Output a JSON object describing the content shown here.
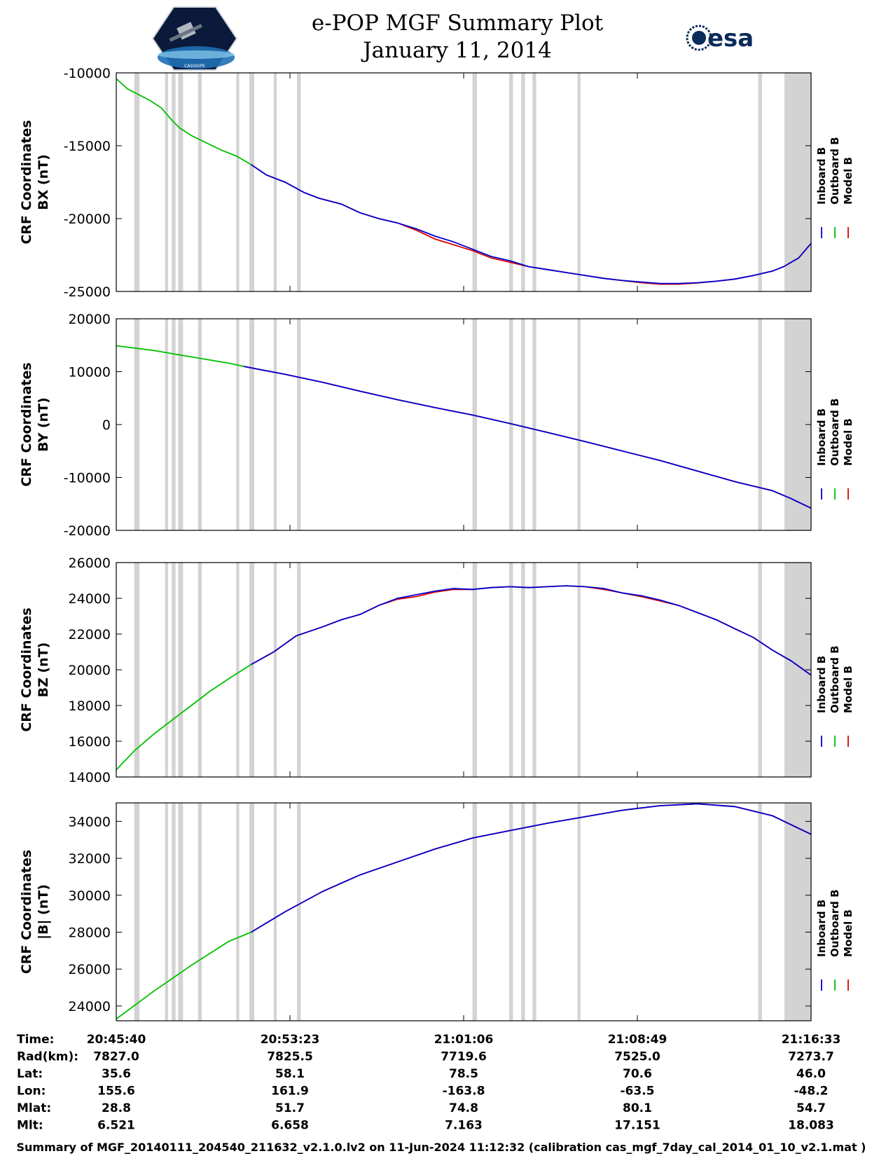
{
  "header": {
    "title_line1": "e-POP MGF Summary Plot",
    "title_line2": "January 11, 2014",
    "logo_left": "CASSIOPE",
    "logo_right": "esa"
  },
  "colors": {
    "inboard": "#0000d0",
    "outboard": "#00c000",
    "model": "#e00000",
    "gap_band": "#d3d3d3"
  },
  "legend": {
    "entries": [
      "Inboard B",
      "Outboard B",
      "Model B"
    ]
  },
  "chart_data": [
    {
      "type": "line",
      "ylabel": [
        "CRF Coordinates",
        "BX (nT)"
      ],
      "ylim": [
        -25000,
        -10000
      ],
      "yticks": [
        -10000,
        -15000,
        -20000,
        -25000
      ],
      "xlim": [
        0,
        1853
      ],
      "xticks": [
        "20:45:40",
        "20:53:23",
        "21:01:06",
        "21:08:49",
        "21:16:33"
      ],
      "gap_bands": [
        [
          48,
          62
        ],
        [
          130,
          138
        ],
        [
          148,
          158
        ],
        [
          165,
          178
        ],
        [
          218,
          228
        ],
        [
          320,
          328
        ],
        [
          355,
          368
        ],
        [
          420,
          428
        ],
        [
          482,
          492
        ],
        [
          950,
          962
        ],
        [
          1048,
          1058
        ],
        [
          1080,
          1090
        ],
        [
          1110,
          1120
        ],
        [
          1230,
          1238
        ],
        [
          1712,
          1722
        ],
        [
          1782,
          1853
        ]
      ],
      "series": [
        {
          "name": "Outboard B",
          "x": [
            0,
            30,
            60,
            90,
            120,
            150,
            170,
            200,
            240,
            280,
            320,
            360
          ],
          "values": [
            -10400,
            -11100,
            -11500,
            -11900,
            -12400,
            -13300,
            -13800,
            -14300,
            -14800,
            -15300,
            -15700,
            -16300
          ]
        },
        {
          "name": "Inboard B",
          "x": [
            360,
            400,
            450,
            500,
            540,
            600,
            650,
            700,
            750,
            800,
            850,
            900,
            950,
            1000,
            1050,
            1100,
            1150,
            1200,
            1250,
            1300,
            1350,
            1400,
            1450,
            1500,
            1550,
            1600,
            1650,
            1700,
            1750,
            1780,
            1820,
            1853
          ],
          "values": [
            -16300,
            -17000,
            -17500,
            -18200,
            -18600,
            -19000,
            -19600,
            -20000,
            -20300,
            -20700,
            -21200,
            -21600,
            -22100,
            -22600,
            -22900,
            -23300,
            -23500,
            -23700,
            -23900,
            -24100,
            -24250,
            -24350,
            -24450,
            -24450,
            -24400,
            -24300,
            -24150,
            -23900,
            -23600,
            -23300,
            -22700,
            -21700
          ]
        },
        {
          "name": "Model B",
          "x": [
            360,
            400,
            450,
            500,
            540,
            600,
            650,
            700,
            750,
            800,
            850,
            900,
            950,
            1000,
            1050,
            1100,
            1150,
            1200,
            1250,
            1300,
            1350,
            1400,
            1450,
            1500,
            1550,
            1600,
            1650,
            1700,
            1750,
            1780,
            1820,
            1853
          ],
          "values": [
            -16300,
            -17000,
            -17500,
            -18200,
            -18600,
            -19000,
            -19600,
            -20000,
            -20300,
            -20800,
            -21400,
            -21800,
            -22200,
            -22700,
            -23000,
            -23300,
            -23500,
            -23700,
            -23900,
            -24100,
            -24250,
            -24400,
            -24500,
            -24500,
            -24420,
            -24300,
            -24150,
            -23900,
            -23600,
            -23300,
            -22700,
            -21700
          ]
        }
      ]
    },
    {
      "type": "line",
      "ylabel": [
        "CRF Coordinates",
        "BY (nT)"
      ],
      "ylim": [
        -20000,
        20000
      ],
      "yticks": [
        20000,
        10000,
        0,
        -10000,
        -20000
      ],
      "xlim": [
        0,
        1853
      ],
      "xticks": [
        "20:45:40",
        "20:53:23",
        "21:01:06",
        "21:08:49",
        "21:16:33"
      ],
      "gap_bands": [
        [
          48,
          62
        ],
        [
          130,
          138
        ],
        [
          148,
          158
        ],
        [
          165,
          178
        ],
        [
          218,
          228
        ],
        [
          320,
          328
        ],
        [
          355,
          368
        ],
        [
          420,
          428
        ],
        [
          482,
          492
        ],
        [
          950,
          962
        ],
        [
          1048,
          1058
        ],
        [
          1080,
          1090
        ],
        [
          1110,
          1120
        ],
        [
          1230,
          1238
        ],
        [
          1712,
          1722
        ],
        [
          1782,
          1853
        ]
      ],
      "series": [
        {
          "name": "Outboard B",
          "x": [
            0,
            100,
            200,
            300,
            340
          ],
          "values": [
            14900,
            14000,
            12800,
            11600,
            11000
          ]
        },
        {
          "name": "Inboard B",
          "x": [
            340,
            450,
            550,
            650,
            750,
            850,
            950,
            1050,
            1150,
            1250,
            1350,
            1450,
            1550,
            1650,
            1750,
            1800,
            1853
          ],
          "values": [
            11000,
            9500,
            8000,
            6300,
            4700,
            3200,
            1800,
            200,
            -1500,
            -3200,
            -5000,
            -6800,
            -8800,
            -10800,
            -12500,
            -14000,
            -15800
          ]
        },
        {
          "name": "Model B",
          "x": [
            340,
            450,
            550,
            650,
            750,
            850,
            950,
            1050,
            1150,
            1250,
            1350,
            1450,
            1550,
            1650,
            1750,
            1800,
            1853
          ],
          "values": [
            11000,
            9500,
            8000,
            6300,
            4700,
            3200,
            1800,
            200,
            -1500,
            -3200,
            -5000,
            -6800,
            -8800,
            -10800,
            -12500,
            -14000,
            -15800
          ]
        }
      ]
    },
    {
      "type": "line",
      "ylabel": [
        "CRF Coordinates",
        "BZ (nT)"
      ],
      "ylim": [
        14000,
        26000
      ],
      "yticks": [
        26000,
        24000,
        22000,
        20000,
        18000,
        16000,
        14000
      ],
      "xlim": [
        0,
        1853
      ],
      "xticks": [
        "20:45:40",
        "20:53:23",
        "21:01:06",
        "21:08:49",
        "21:16:33"
      ],
      "gap_bands": [
        [
          48,
          62
        ],
        [
          130,
          138
        ],
        [
          148,
          158
        ],
        [
          165,
          178
        ],
        [
          218,
          228
        ],
        [
          320,
          328
        ],
        [
          355,
          368
        ],
        [
          420,
          428
        ],
        [
          482,
          492
        ],
        [
          950,
          962
        ],
        [
          1048,
          1058
        ],
        [
          1080,
          1090
        ],
        [
          1110,
          1120
        ],
        [
          1230,
          1238
        ],
        [
          1712,
          1722
        ],
        [
          1782,
          1853
        ]
      ],
      "series": [
        {
          "name": "Outboard B",
          "x": [
            0,
            50,
            100,
            150,
            200,
            250,
            300,
            360
          ],
          "values": [
            14400,
            15500,
            16400,
            17200,
            18000,
            18800,
            19500,
            20300
          ]
        },
        {
          "name": "Inboard B",
          "x": [
            360,
            420,
            480,
            550,
            600,
            650,
            700,
            750,
            800,
            850,
            900,
            950,
            1000,
            1050,
            1100,
            1150,
            1200,
            1250,
            1300,
            1350,
            1400,
            1450,
            1500,
            1550,
            1600,
            1650,
            1700,
            1750,
            1800,
            1853
          ],
          "values": [
            20300,
            21000,
            21900,
            22400,
            22800,
            23100,
            23600,
            24000,
            24200,
            24400,
            24550,
            24500,
            24600,
            24650,
            24600,
            24650,
            24700,
            24650,
            24550,
            24300,
            24150,
            23900,
            23600,
            23200,
            22800,
            22300,
            21800,
            21100,
            20500,
            19700
          ]
        },
        {
          "name": "Model B",
          "x": [
            360,
            420,
            480,
            550,
            600,
            650,
            700,
            750,
            800,
            850,
            900,
            950,
            1000,
            1050,
            1100,
            1150,
            1200,
            1250,
            1300,
            1350,
            1400,
            1450,
            1500,
            1550,
            1600,
            1650,
            1700,
            1750,
            1800,
            1853
          ],
          "values": [
            20300,
            21000,
            21900,
            22400,
            22800,
            23100,
            23600,
            23950,
            24100,
            24350,
            24500,
            24500,
            24600,
            24650,
            24600,
            24650,
            24700,
            24650,
            24500,
            24300,
            24100,
            23850,
            23600,
            23200,
            22800,
            22300,
            21800,
            21100,
            20500,
            19700
          ]
        }
      ]
    },
    {
      "type": "line",
      "ylabel": [
        "CRF Coordinates",
        "|B| (nT)"
      ],
      "ylim": [
        23200,
        35000
      ],
      "yticks": [
        34000,
        32000,
        30000,
        28000,
        26000,
        24000
      ],
      "xlim": [
        0,
        1853
      ],
      "xticks": [
        "20:45:40",
        "20:53:23",
        "21:01:06",
        "21:08:49",
        "21:16:33"
      ],
      "gap_bands": [
        [
          48,
          62
        ],
        [
          130,
          138
        ],
        [
          148,
          158
        ],
        [
          165,
          178
        ],
        [
          218,
          228
        ],
        [
          320,
          328
        ],
        [
          355,
          368
        ],
        [
          420,
          428
        ],
        [
          482,
          492
        ],
        [
          950,
          962
        ],
        [
          1048,
          1058
        ],
        [
          1080,
          1090
        ],
        [
          1110,
          1120
        ],
        [
          1230,
          1238
        ],
        [
          1712,
          1722
        ],
        [
          1782,
          1853
        ]
      ],
      "series": [
        {
          "name": "Outboard B",
          "x": [
            0,
            100,
            200,
            300,
            360
          ],
          "values": [
            23300,
            24800,
            26200,
            27500,
            28000
          ]
        },
        {
          "name": "Inboard B",
          "x": [
            360,
            450,
            550,
            650,
            750,
            850,
            950,
            1050,
            1150,
            1250,
            1350,
            1450,
            1550,
            1650,
            1750,
            1853
          ],
          "values": [
            28000,
            29100,
            30200,
            31100,
            31800,
            32500,
            33100,
            33500,
            33900,
            34250,
            34600,
            34850,
            34950,
            34800,
            34300,
            33300
          ]
        },
        {
          "name": "Model B",
          "x": [
            360,
            450,
            550,
            650,
            750,
            850,
            950,
            1050,
            1150,
            1250,
            1350,
            1450,
            1550,
            1650,
            1750,
            1853
          ],
          "values": [
            28000,
            29100,
            30200,
            31100,
            31800,
            32500,
            33100,
            33500,
            33900,
            34250,
            34600,
            34850,
            34950,
            34800,
            34300,
            33300
          ]
        }
      ]
    }
  ],
  "ephemeris": {
    "rows": [
      {
        "label": "Time:",
        "values": [
          "20:45:40",
          "20:53:23",
          "21:01:06",
          "21:08:49",
          "21:16:33"
        ]
      },
      {
        "label": "Rad(km):",
        "values": [
          "7827.0",
          "7825.5",
          "7719.6",
          "7525.0",
          "7273.7"
        ]
      },
      {
        "label": "Lat:",
        "values": [
          "35.6",
          "58.1",
          "78.5",
          "70.6",
          "46.0"
        ]
      },
      {
        "label": "Lon:",
        "values": [
          "155.6",
          "161.9",
          "-163.8",
          "-63.5",
          "-48.2"
        ]
      },
      {
        "label": "Mlat:",
        "values": [
          "28.8",
          "51.7",
          "74.8",
          "80.1",
          "54.7"
        ]
      },
      {
        "label": "Mlt:",
        "values": [
          "6.521",
          "6.658",
          "7.163",
          "17.151",
          "18.083"
        ]
      }
    ]
  },
  "footer": "Summary of MGF_20140111_204540_211632_v2.1.0.lv2 on 11-Jun-2024 11:12:32 (calibration cas_mgf_7day_cal_2014_01_10_v2.1.mat )"
}
